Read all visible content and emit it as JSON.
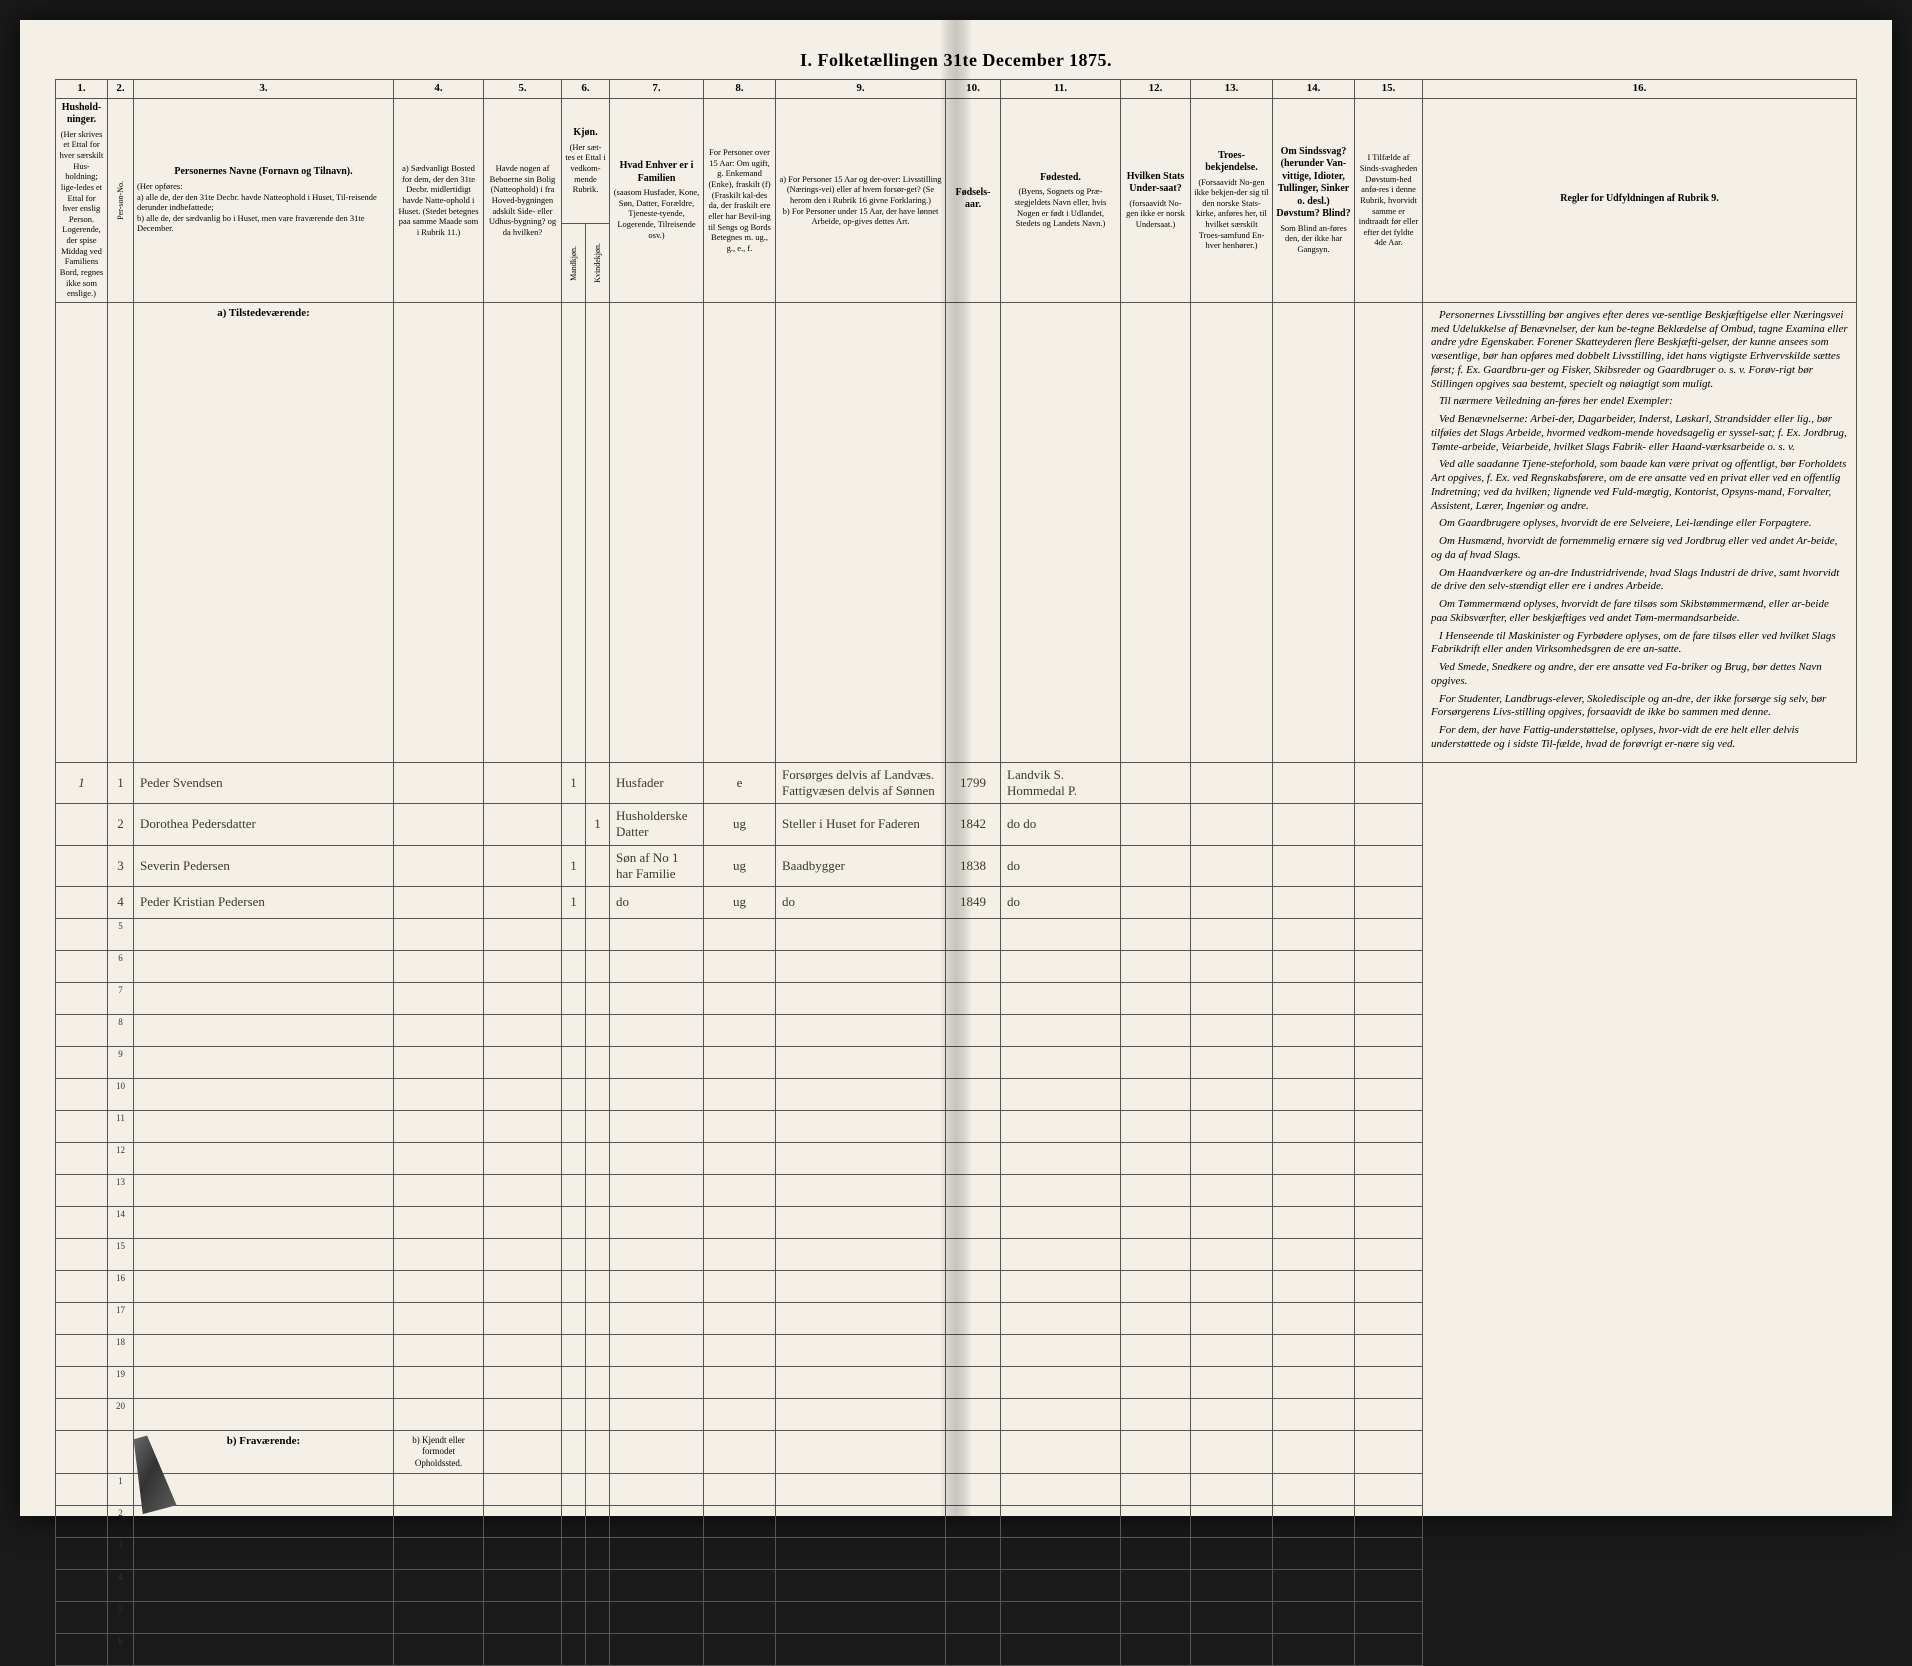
{
  "title": "I. Folketællingen 31te December 1875.",
  "colnums": [
    "1.",
    "2.",
    "3.",
    "4.",
    "5.",
    "6.",
    "7.",
    "8.",
    "9.",
    "10.",
    "11.",
    "12.",
    "13.",
    "14.",
    "15.",
    "16."
  ],
  "headers": {
    "c1": "Hushold-ninger.",
    "c1sub": "(Her skrives et Ettal for hver særskilt Hus-holdning; lige-ledes et Ettal for hver enslig Person. Logerende, der spise Middag ved Familiens Bord, regnes ikke som enslige.)",
    "c2": "Per-son-No.",
    "c3": "Personernes Navne (Fornavn og Tilnavn).",
    "c3sub": "(Her opføres:\na) alle de, der den 31te Decbr. havde Natteophold i Huset, Til-reisende derunder indbefattede;\nb) alle de, der sædvanlig bo i Huset, men vare fraværende den 31te December.",
    "c4": "a) Sædvanligt Bosted for dem, der den 31te Decbr. midlertidigt havde Natte-ophold i Huset. (Stedet betegnes paa samme Maade som i Rubrik 11.)",
    "c5": "Havde nogen af Beboerne sin Bolig (Natteophold) i fra Hoved-bygningen adskilt Side- eller Udhus-bygning? og da hvilken?",
    "c6": "Kjøn.",
    "c6sub": "(Her sæt-tes et Ettal i vedkom-mende Rubrik.",
    "c6a": "Mandkjøn.",
    "c6b": "Kvindekjøn.",
    "c7": "Hvad Enhver er i Familien",
    "c7sub": "(saasom Husfader, Kone, Søn, Datter, Forældre, Tjeneste-tyende, Logerende, Tilreisende osv.)",
    "c8": "For Personer over 15 Aar: Om ugift, g. Enkemand (Enke), fraskilt (f) (Fraskilt kal-des da, der fraskilt ere eller har Bevil-ing til Sengs og Bords Betegnes m. ug., g., e., f.",
    "c9": "a) For Personer 15 Aar og der-over: Livsstilling (Nærings-vei) eller af hvem forsør-get? (Se herom den i Rubrik 16 givne Forklaring.)\nb) For Personer under 15 Aar, der have lønnet Arbeide, op-gives dettes Art.",
    "c10": "Fødsels-aar.",
    "c11": "Fødested.",
    "c11sub": "(Byens, Sognets og Præ-stegjeldets Navn eller, hvis Nogen er født i Udlandet, Stedets og Landets Navn.)",
    "c12": "Hvilken Stats Under-saat?",
    "c12sub": "(forsaavidt No-gen ikke er norsk Undersaat.)",
    "c13": "Troes-bekjendelse.",
    "c13sub": "(Forsaavidt No-gen ikke bekjen-der sig til den norske Stats-kirke, anføres her, til hvilket særskilt Troes-samfund En-hver henhører.)",
    "c14": "Om Sindssvag? (herunder Van-vittige, Idioter, Tullinger, Sinker o. desl.) Døvstum? Blind?",
    "c14sub": "Som Blind an-føres den, der ikke har Gangsyn.",
    "c15": "I Tilfælde af Sinds-svagheden Døvstum-hed anfø-res i denne Rubrik, hvorvidt samme er indtraadt før eller efter det fyldte 4de Aar.",
    "c16": "Regler for Udfyldningen af Rubrik 9."
  },
  "section_a": "a) Tilstedeværende:",
  "section_b": "b) Fraværende:",
  "section_b4": "b) Kjendt eller formodet Opholdssted.",
  "rows": [
    {
      "hh": "1",
      "no": "1",
      "name": "Peder Svendsen",
      "m": "1",
      "fam": "Husfader",
      "civ": "e",
      "occ": "Forsørges delvis af Landvæs. Fattigvæsen delvis af Sønnen",
      "yr": "1799",
      "bp": "Landvik S. Hommedal P."
    },
    {
      "hh": "",
      "no": "2",
      "name": "Dorothea Pedersdatter",
      "m": "",
      "k": "1",
      "fam": "Husholderske Datter",
      "civ": "ug",
      "occ": "Steller i Huset for Faderen",
      "yr": "1842",
      "bp": "do   do"
    },
    {
      "hh": "",
      "no": "3",
      "name": "Severin Pedersen",
      "m": "1",
      "fam": "Søn af No 1 har Familie",
      "civ": "ug",
      "occ": "Baadbygger",
      "yr": "1838",
      "bp": "do"
    },
    {
      "hh": "",
      "no": "4",
      "name": "Peder Kristian Pedersen",
      "m": "1",
      "fam": "do",
      "civ": "ug",
      "occ": "do",
      "yr": "1849",
      "bp": "do"
    }
  ],
  "empty_a": [
    "5",
    "6",
    "7",
    "8",
    "9",
    "10",
    "11",
    "12",
    "13",
    "14",
    "15",
    "16",
    "17",
    "18",
    "19",
    "20"
  ],
  "empty_b": [
    "1",
    "2",
    "3",
    "4",
    "5",
    "6"
  ],
  "rules": [
    "Personernes Livsstilling bør angives efter deres væ-sentlige Beskjæftigelse eller Næringsvei med Udelukkelse af Benævnelser, der kun be-tegne Beklædelse af Ombud, tagne Examina eller andre ydre Egenskaber. Forener Skatteyderen flere Beskjæfti-gelser, der kunne ansees som væsentlige, bør han opføres med dobbelt Livsstilling, idet hans vigtigste Erhvervskilde sættes først; f. Ex. Gaardbru-ger og Fisker, Skibsreder og Gaardbruger o. s. v. Forøv-rigt bør Stillingen opgives saa bestemt, specielt og nøiagtigt som muligt.",
    "Til nærmere Veiledning an-føres her endel Exempler:",
    "Ved Benævnelserne: Arbei-der, Dagarbeider, Inderst, Løskarl, Strandsidder eller lig., bør tilføies det Slags Arbeide, hvormed vedkom-mende hovedsagelig er syssel-sat; f. Ex. Jordbrug, Tømte-arbeide, Veiarbeide, hvilket Slags Fabrik- eller Haand-værksarbeide o. s. v.",
    "Ved alle saadanne Tjene-steforhold, som baade kan være privat og offentligt, bør Forholdets Art opgives, f. Ex. ved Regnskabsførere, om de ere ansatte ved en privat eller ved en offentlig Indretning; ved da hvilken; lignende ved Fuld-mægtig, Kontorist, Opsyns-mand, Forvalter, Assistent, Lærer, Ingeniør og andre.",
    "Om Gaardbrugere oplyses, hvorvidt de ere Selveiere, Lei-lændinge eller Forpagtere.",
    "Om Husmænd, hvorvidt de fornemmelig ernære sig ved Jordbrug eller ved andet Ar-beide, og da af hvad Slags.",
    "Om Haandværkere og an-dre Industridrivende, hvad Slags Industri de drive, samt hvorvidt de drive den selv-stændigt eller ere i andres Arbeide.",
    "Om Tømmermænd oplyses, hvorvidt de fare tilsøs som Skibstømmermænd, eller ar-beide paa Skibsværfter, eller beskjæftiges ved andet Tøm-mermandsarbeide.",
    "I Henseende til Maskinister og Fyrbødere oplyses, om de fare tilsøs eller ved hvilket Slags Fabrikdrift eller anden Virksomhedsgren de ere an-satte.",
    "Ved Smede, Snedkere og andre, der ere ansatte ved Fa-briker og Brug, bør dettes Navn opgives.",
    "For Studenter, Landbrugs-elever, Skoledisciple og an-dre, der ikke forsørge sig selv, bør Forsørgerens Livs-stilling opgives, forsaavidt de ikke bo sammen med denne.",
    "For dem, der have Fattig-understøttelse, oplyses, hvor-vidt de ere helt eller delvis understøttede og i sidste Til-fælde, hvad de forøvrigt er-nære sig ved."
  ]
}
